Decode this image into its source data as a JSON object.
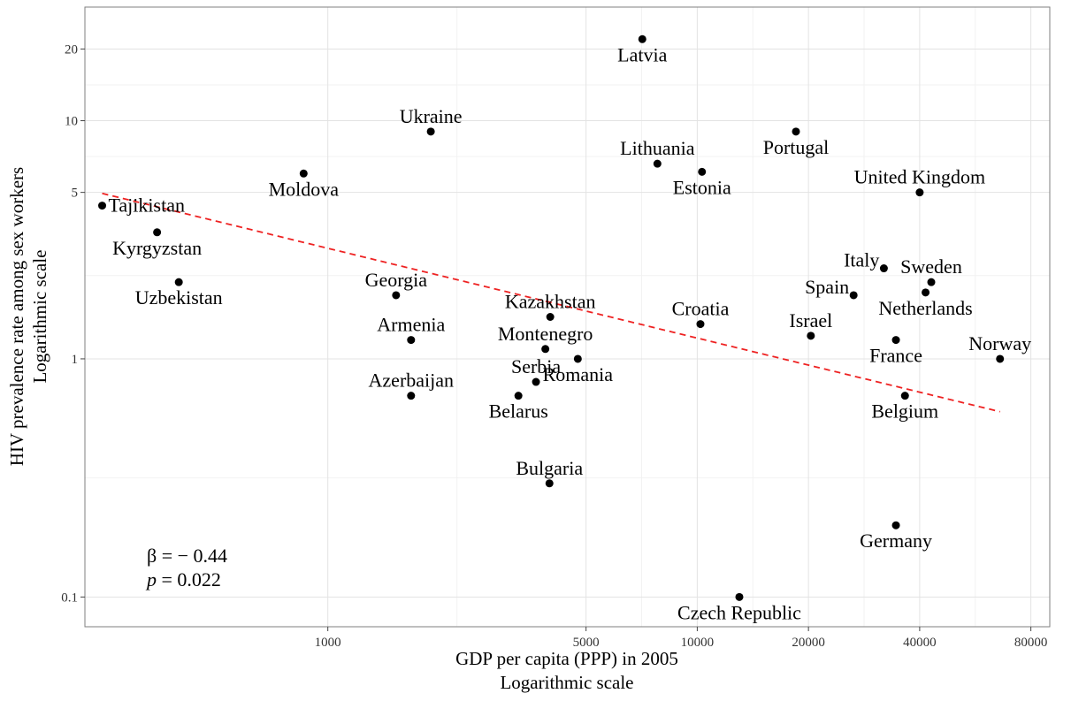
{
  "chart_data": {
    "type": "scatter",
    "x_scale": "log",
    "y_scale": "log",
    "xlabel": [
      "GDP per capita (PPP) in 2005",
      "Logarithmic scale"
    ],
    "ylabel": [
      "HIV prevalence rate among sex workers",
      "Logarithmic scale"
    ],
    "xlim": [
      220,
      90000
    ],
    "ylim": [
      0.075,
      30
    ],
    "x_ticks": [
      {
        "value": 1000,
        "label": "1000"
      },
      {
        "value": 5000,
        "label": "5000"
      },
      {
        "value": 10000,
        "label": "10000"
      },
      {
        "value": 20000,
        "label": "20000"
      },
      {
        "value": 40000,
        "label": "40000"
      },
      {
        "value": 80000,
        "label": "80000"
      }
    ],
    "y_ticks": [
      {
        "value": 0.1,
        "label": "0.1"
      },
      {
        "value": 1,
        "label": "1"
      },
      {
        "value": 5,
        "label": "5"
      },
      {
        "value": 10,
        "label": "10"
      },
      {
        "value": 20,
        "label": "20"
      }
    ],
    "grid": true,
    "point_color": "#000000",
    "trend_color": "#ee2222",
    "points": [
      {
        "name": "Latvia",
        "x": 7100,
        "y": 22,
        "lpos": "b"
      },
      {
        "name": "Ukraine",
        "x": 1900,
        "y": 9.0,
        "lpos": "t"
      },
      {
        "name": "Portugal",
        "x": 18500,
        "y": 9.0,
        "lpos": "b"
      },
      {
        "name": "Lithuania",
        "x": 7800,
        "y": 6.6,
        "lpos": "t"
      },
      {
        "name": "Estonia",
        "x": 10300,
        "y": 6.1,
        "lpos": "b"
      },
      {
        "name": "Moldova",
        "x": 860,
        "y": 6.0,
        "lpos": "b"
      },
      {
        "name": "United Kingdom",
        "x": 40000,
        "y": 5.0,
        "lpos": "t"
      },
      {
        "name": "Tajikistan",
        "x": 245,
        "y": 4.4,
        "lpos": "r"
      },
      {
        "name": "Kyrgyzstan",
        "x": 345,
        "y": 3.4,
        "lpos": "b"
      },
      {
        "name": "Italy",
        "x": 32000,
        "y": 2.4,
        "lpos": "tl"
      },
      {
        "name": "Sweden",
        "x": 43000,
        "y": 2.1,
        "lpos": "t"
      },
      {
        "name": "Uzbekistan",
        "x": 395,
        "y": 2.1,
        "lpos": "b"
      },
      {
        "name": "Netherlands",
        "x": 41500,
        "y": 1.9,
        "lpos": "b"
      },
      {
        "name": "Spain",
        "x": 26500,
        "y": 1.85,
        "lpos": "tl"
      },
      {
        "name": "Georgia",
        "x": 1530,
        "y": 1.85,
        "lpos": "t"
      },
      {
        "name": "Kazakhstan",
        "x": 4000,
        "y": 1.5,
        "lpos": "t"
      },
      {
        "name": "Croatia",
        "x": 10200,
        "y": 1.4,
        "lpos": "t"
      },
      {
        "name": "Israel",
        "x": 20300,
        "y": 1.25,
        "lpos": "t"
      },
      {
        "name": "Armenia",
        "x": 1680,
        "y": 1.2,
        "lpos": "t"
      },
      {
        "name": "France",
        "x": 34500,
        "y": 1.2,
        "lpos": "b"
      },
      {
        "name": "Montenegro",
        "x": 3880,
        "y": 1.1,
        "lpos": "t"
      },
      {
        "name": "Romania",
        "x": 4750,
        "y": 1.0,
        "lpos": "b"
      },
      {
        "name": "Norway",
        "x": 66000,
        "y": 1.0,
        "lpos": "t"
      },
      {
        "name": "Serbia",
        "x": 3660,
        "y": 0.8,
        "lpos": "t"
      },
      {
        "name": "Azerbaijan",
        "x": 1680,
        "y": 0.7,
        "lpos": "t"
      },
      {
        "name": "Belarus",
        "x": 3280,
        "y": 0.7,
        "lpos": "b"
      },
      {
        "name": "Belgium",
        "x": 36500,
        "y": 0.7,
        "lpos": "b"
      },
      {
        "name": "Bulgaria",
        "x": 3980,
        "y": 0.3,
        "lpos": "t"
      },
      {
        "name": "Germany",
        "x": 34500,
        "y": 0.2,
        "lpos": "b"
      },
      {
        "name": "Czech Republic",
        "x": 13000,
        "y": 0.1,
        "lpos": "b"
      }
    ],
    "trend": {
      "x": [
        245,
        66000
      ],
      "y": [
        4.95,
        0.6
      ],
      "style": "dashed"
    },
    "annotations": {
      "beta": "β = − 0.44",
      "p_prefix": "p",
      "p_rest": " = 0.022"
    }
  }
}
